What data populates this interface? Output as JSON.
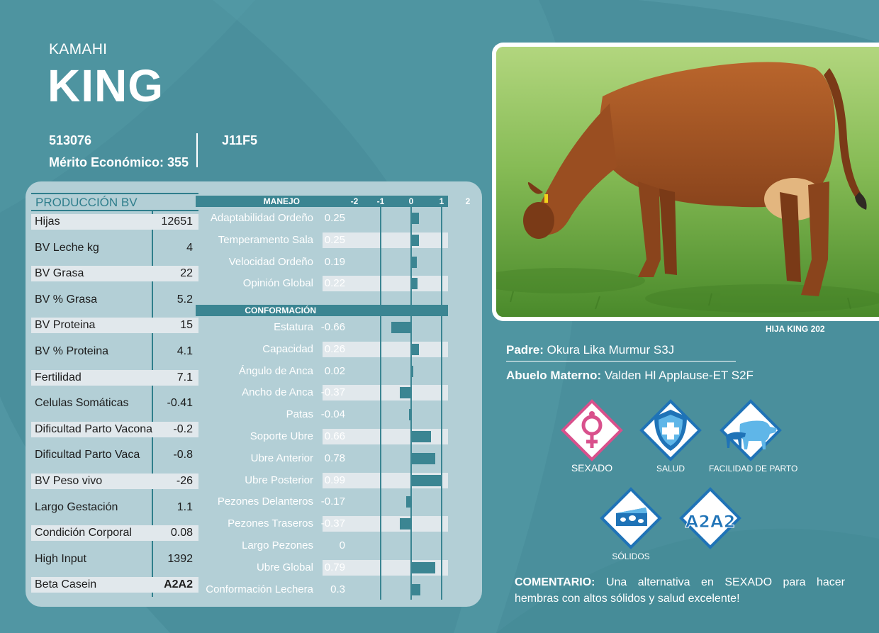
{
  "header": {
    "prefix": "KAMAHI",
    "name": "KING",
    "registration": "513076",
    "merit_label": "Mérito Económico:",
    "merit_value": "355",
    "code": "J11F5"
  },
  "production": {
    "title": "PRODUCCIÓN BV",
    "rows": [
      {
        "label": "Hijas",
        "value": "12651"
      },
      {
        "label": "BV Leche kg",
        "value": "4"
      },
      {
        "label": "BV Grasa",
        "value": "22"
      },
      {
        "label": "BV % Grasa",
        "value": "5.2"
      },
      {
        "label": "BV Proteina",
        "value": "15"
      },
      {
        "label": "BV % Proteina",
        "value": "4.1"
      },
      {
        "label": "Fertilidad",
        "value": "7.1"
      },
      {
        "label": "Celulas Somáticas",
        "value": "-0.41"
      },
      {
        "label": "Dificultad Parto Vacona",
        "value": "-0.2"
      },
      {
        "label": "Dificultad Parto Vaca",
        "value": "-0.8"
      },
      {
        "label": "BV Peso vivo",
        "value": "-26"
      },
      {
        "label": "Largo Gestación",
        "value": "1.1"
      },
      {
        "label": "Condición Corporal",
        "value": "0.08"
      },
      {
        "label": "High Input",
        "value": "1392"
      },
      {
        "label": "Beta Casein",
        "value": "A2A2"
      }
    ]
  },
  "chart_data": {
    "type": "bar",
    "orientation": "horizontal",
    "xlim": [
      -2,
      2
    ],
    "scale_ticks": [
      "-2",
      "-1",
      "0",
      "1",
      "2"
    ],
    "sections": [
      {
        "title": "MANEJO",
        "traits": [
          {
            "label": "Adaptabilidad Ordeño",
            "display": "0.25",
            "value": 0.25
          },
          {
            "label": "Temperamento Sala",
            "display": "0.25",
            "value": 0.25
          },
          {
            "label": "Velocidad Ordeño",
            "display": "0.19",
            "value": 0.19
          },
          {
            "label": "Opinión Global",
            "display": "0.22",
            "value": 0.22
          }
        ]
      },
      {
        "title": "CONFORMACIÓN",
        "traits": [
          {
            "label": "Estatura",
            "display": "-0.66",
            "value": -0.66
          },
          {
            "label": "Capacidad",
            "display": "0.26",
            "value": 0.26
          },
          {
            "label": "Ángulo de Anca",
            "display": "0.02",
            "value": 0.02
          },
          {
            "label": "Ancho de Anca",
            "display": "-0.37",
            "value": -0.37
          },
          {
            "label": "Patas",
            "display": "-0.04",
            "value": -0.04
          },
          {
            "label": "Soporte Ubre",
            "display": "0.66",
            "value": 0.66
          },
          {
            "label": "Ubre Anterior",
            "display": "0.78",
            "value": 0.78
          },
          {
            "label": "Ubre Posterior",
            "display": "0.99",
            "value": 0.99
          },
          {
            "label": "Pezones Delanteros",
            "display": "-0.17",
            "value": -0.17
          },
          {
            "label": "Pezones Traseros",
            "display": "-0.37",
            "value": -0.37
          },
          {
            "label": "Largo Pezones",
            "display": "0",
            "value": 0
          },
          {
            "label": "Ubre Global",
            "display": "0.79",
            "value": 0.79
          },
          {
            "label": "Conformación Lechera",
            "display": "0.3",
            "value": 0.3
          }
        ]
      }
    ]
  },
  "photo": {
    "caption": "HIJA KING 202"
  },
  "pedigree": {
    "sire_label": "Padre:",
    "sire": "Okura Lika Murmur S3J",
    "mgs_label": "Abuelo Materno:",
    "mgs": "Valden Hl Applause-ET S2F"
  },
  "badges": [
    {
      "label": "SEXADO",
      "icon": "female-symbol-icon",
      "color": "#d9508c"
    },
    {
      "label": "SALUD",
      "icon": "shield-cross-icon",
      "color": "#1f73b7"
    },
    {
      "label": "FACILIDAD DE PARTO",
      "icon": "cow-calf-icon",
      "color": "#1f73b7"
    },
    {
      "label": "SÓLIDOS",
      "icon": "cheese-icon",
      "color": "#1f73b7"
    },
    {
      "label": "",
      "icon": "a2a2-icon",
      "color": "#1f73b7"
    }
  ],
  "a2a2_logo_text": "A2A2",
  "comment": {
    "label": "COMENTARIO:",
    "text": " Una alternativa en SEXADO para hacer hembras con altos sólidos y salud excelente!"
  }
}
